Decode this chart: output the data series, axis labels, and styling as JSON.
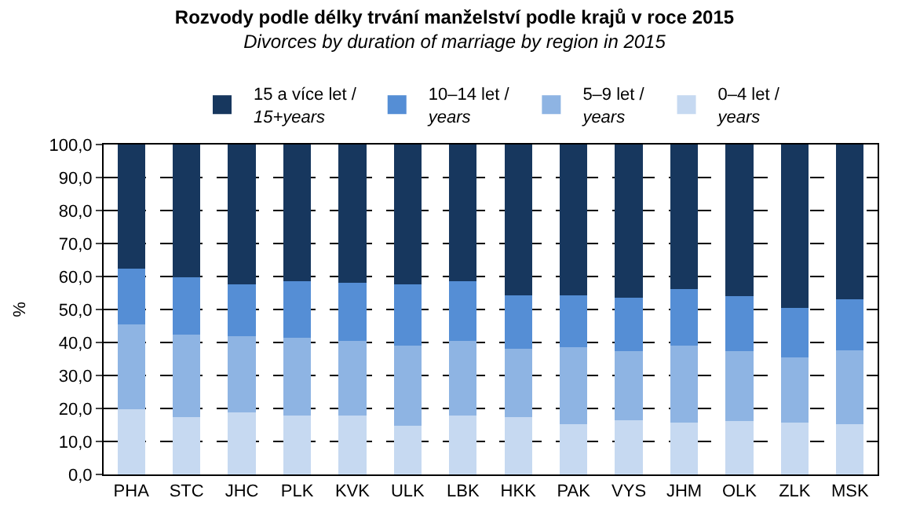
{
  "chart_data": {
    "type": "bar",
    "stacked": true,
    "title": "Rozvody podle délky trvání manželství podle krajů v roce 2015",
    "subtitle": "Divorces by duration of marriage by region in 2015",
    "ylabel": "%",
    "categories": [
      "PHA",
      "STC",
      "JHC",
      "PLK",
      "KVK",
      "ULK",
      "LBK",
      "HKK",
      "PAK",
      "VYS",
      "JHM",
      "OLK",
      "ZLK",
      "MSK"
    ],
    "series": [
      {
        "name": "0–4 let /\nyears",
        "color": "#c6d9f1",
        "values": [
          19.8,
          17.4,
          18.8,
          17.9,
          17.9,
          14.7,
          17.9,
          17.4,
          15.2,
          16.5,
          15.6,
          16.1,
          15.6,
          15.2
        ]
      },
      {
        "name": "5–9 let /\nyears",
        "color": "#8eb4e3",
        "values": [
          25.6,
          24.9,
          23.0,
          23.5,
          22.6,
          24.4,
          22.6,
          20.8,
          23.4,
          20.8,
          23.5,
          21.2,
          19.9,
          22.5
        ]
      },
      {
        "name": "10–14 let /\nyears",
        "color": "#558ed5",
        "values": [
          16.9,
          17.5,
          15.8,
          17.1,
          17.5,
          18.5,
          18.0,
          16.2,
          15.8,
          16.2,
          17.1,
          16.7,
          14.9,
          15.4
        ]
      },
      {
        "name": "15 a více let /\n15+years",
        "color": "#17375e",
        "values": [
          37.7,
          40.2,
          42.4,
          41.5,
          42.0,
          42.4,
          41.5,
          45.6,
          45.6,
          46.5,
          43.8,
          46.0,
          49.6,
          46.9
        ]
      }
    ],
    "ylim": [
      0,
      100
    ],
    "yticks": [
      {
        "value": 0,
        "label": "0,0"
      },
      {
        "value": 10,
        "label": "10,0"
      },
      {
        "value": 20,
        "label": "20,0"
      },
      {
        "value": 30,
        "label": "30,0"
      },
      {
        "value": 40,
        "label": "40,0"
      },
      {
        "value": 50,
        "label": "50,0"
      },
      {
        "value": 60,
        "label": "60,0"
      },
      {
        "value": 70,
        "label": "70,0"
      },
      {
        "value": 80,
        "label": "80,0"
      },
      {
        "value": 90,
        "label": "90,0"
      },
      {
        "value": 100,
        "label": "100,0"
      }
    ],
    "grid": "y",
    "line_style": "dashed",
    "legend": "top"
  }
}
